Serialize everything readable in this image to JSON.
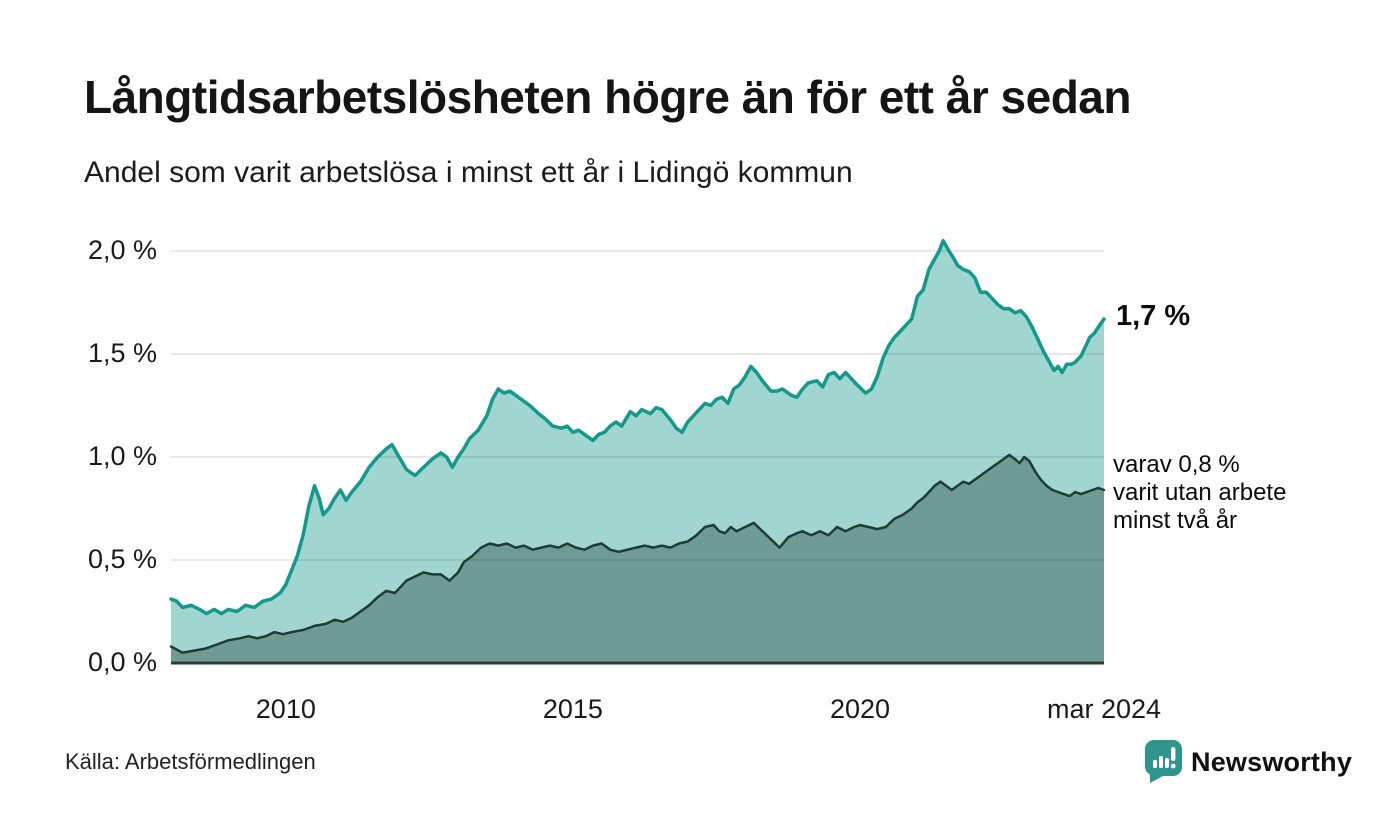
{
  "header": {
    "title": "Långtidsarbetslösheten högre än för ett år sedan",
    "subtitle": "Andel som varit arbetslösa i minst ett år i Lidingö kommun"
  },
  "annotations": {
    "latest_value": "1,7 %",
    "series2_lines": [
      "varav 0,8 %",
      "varit utan arbete",
      "minst två år"
    ]
  },
  "footer": {
    "source": "Källa: Arbetsförmedlingen",
    "brand": "Newsworthy"
  },
  "colors": {
    "teal_line": "#12998c",
    "light_fill": "#a0d6cf",
    "dark_line": "#1f3b38",
    "dark_fill": "#6f9b96",
    "grid": "rgba(0,0,0,0.12)",
    "axis": "#2b3b3c",
    "brand_teal": "#2f948c"
  },
  "chart_data": {
    "type": "area",
    "title": "Långtidsarbetslösheten högre än för ett år sedan",
    "subtitle": "Andel som varit arbetslösa i minst ett år i Lidingö kommun",
    "unit": "%",
    "grid": true,
    "x_domain": [
      2008.0,
      2024.25
    ],
    "ylim": [
      0,
      2.05
    ],
    "y_ticks": [
      {
        "value": 2.0,
        "label": "2,0 %"
      },
      {
        "value": 1.5,
        "label": "1,5 %"
      },
      {
        "value": 1.0,
        "label": "1,0 %"
      },
      {
        "value": 0.5,
        "label": "0,5 %"
      },
      {
        "value": 0.0,
        "label": "0,0 %"
      }
    ],
    "x_ticks": [
      {
        "value": 2010,
        "label": "2010"
      },
      {
        "value": 2015,
        "label": "2015"
      },
      {
        "value": 2020,
        "label": "2020"
      },
      {
        "value": 2024.25,
        "label": "mar 2024"
      }
    ],
    "series": [
      {
        "name": "Andel arbetslösa minst ett år",
        "end_value_label": "1,7 %",
        "line_color": "#12998c",
        "fill_color": "#a0d6cf",
        "line_width": 3.5,
        "points": [
          [
            2008.0,
            0.31
          ],
          [
            2008.1,
            0.3
          ],
          [
            2008.2,
            0.27
          ],
          [
            2008.35,
            0.28
          ],
          [
            2008.5,
            0.26
          ],
          [
            2008.62,
            0.24
          ],
          [
            2008.75,
            0.26
          ],
          [
            2008.88,
            0.24
          ],
          [
            2009.0,
            0.26
          ],
          [
            2009.15,
            0.25
          ],
          [
            2009.3,
            0.28
          ],
          [
            2009.45,
            0.27
          ],
          [
            2009.6,
            0.3
          ],
          [
            2009.75,
            0.31
          ],
          [
            2009.9,
            0.34
          ],
          [
            2010.0,
            0.38
          ],
          [
            2010.1,
            0.45
          ],
          [
            2010.2,
            0.52
          ],
          [
            2010.3,
            0.62
          ],
          [
            2010.4,
            0.76
          ],
          [
            2010.5,
            0.86
          ],
          [
            2010.58,
            0.8
          ],
          [
            2010.65,
            0.72
          ],
          [
            2010.75,
            0.75
          ],
          [
            2010.85,
            0.8
          ],
          [
            2010.95,
            0.84
          ],
          [
            2011.05,
            0.79
          ],
          [
            2011.15,
            0.83
          ],
          [
            2011.3,
            0.88
          ],
          [
            2011.45,
            0.95
          ],
          [
            2011.6,
            1.0
          ],
          [
            2011.75,
            1.04
          ],
          [
            2011.85,
            1.06
          ],
          [
            2011.95,
            1.01
          ],
          [
            2012.1,
            0.94
          ],
          [
            2012.25,
            0.91
          ],
          [
            2012.4,
            0.95
          ],
          [
            2012.55,
            0.99
          ],
          [
            2012.7,
            1.02
          ],
          [
            2012.8,
            1.0
          ],
          [
            2012.9,
            0.95
          ],
          [
            2013.0,
            1.0
          ],
          [
            2013.1,
            1.04
          ],
          [
            2013.2,
            1.09
          ],
          [
            2013.35,
            1.13
          ],
          [
            2013.5,
            1.2
          ],
          [
            2013.6,
            1.28
          ],
          [
            2013.7,
            1.33
          ],
          [
            2013.8,
            1.31
          ],
          [
            2013.9,
            1.32
          ],
          [
            2014.0,
            1.3
          ],
          [
            2014.1,
            1.28
          ],
          [
            2014.25,
            1.25
          ],
          [
            2014.4,
            1.21
          ],
          [
            2014.5,
            1.19
          ],
          [
            2014.65,
            1.15
          ],
          [
            2014.8,
            1.14
          ],
          [
            2014.9,
            1.15
          ],
          [
            2015.0,
            1.12
          ],
          [
            2015.1,
            1.13
          ],
          [
            2015.25,
            1.1
          ],
          [
            2015.35,
            1.08
          ],
          [
            2015.45,
            1.11
          ],
          [
            2015.55,
            1.12
          ],
          [
            2015.65,
            1.15
          ],
          [
            2015.75,
            1.17
          ],
          [
            2015.85,
            1.15
          ],
          [
            2016.0,
            1.22
          ],
          [
            2016.1,
            1.2
          ],
          [
            2016.2,
            1.23
          ],
          [
            2016.35,
            1.21
          ],
          [
            2016.45,
            1.24
          ],
          [
            2016.55,
            1.23
          ],
          [
            2016.7,
            1.18
          ],
          [
            2016.8,
            1.14
          ],
          [
            2016.9,
            1.12
          ],
          [
            2017.0,
            1.17
          ],
          [
            2017.1,
            1.2
          ],
          [
            2017.2,
            1.23
          ],
          [
            2017.3,
            1.26
          ],
          [
            2017.4,
            1.25
          ],
          [
            2017.5,
            1.28
          ],
          [
            2017.6,
            1.29
          ],
          [
            2017.7,
            1.26
          ],
          [
            2017.8,
            1.33
          ],
          [
            2017.9,
            1.35
          ],
          [
            2018.0,
            1.39
          ],
          [
            2018.1,
            1.44
          ],
          [
            2018.2,
            1.41
          ],
          [
            2018.3,
            1.37
          ],
          [
            2018.45,
            1.32
          ],
          [
            2018.55,
            1.32
          ],
          [
            2018.65,
            1.33
          ],
          [
            2018.8,
            1.3
          ],
          [
            2018.9,
            1.29
          ],
          [
            2019.0,
            1.33
          ],
          [
            2019.1,
            1.36
          ],
          [
            2019.25,
            1.37
          ],
          [
            2019.35,
            1.34
          ],
          [
            2019.45,
            1.4
          ],
          [
            2019.55,
            1.41
          ],
          [
            2019.65,
            1.38
          ],
          [
            2019.75,
            1.41
          ],
          [
            2019.85,
            1.38
          ],
          [
            2019.95,
            1.35
          ],
          [
            2020.1,
            1.31
          ],
          [
            2020.2,
            1.33
          ],
          [
            2020.3,
            1.39
          ],
          [
            2020.4,
            1.48
          ],
          [
            2020.5,
            1.54
          ],
          [
            2020.6,
            1.58
          ],
          [
            2020.7,
            1.61
          ],
          [
            2020.8,
            1.64
          ],
          [
            2020.9,
            1.67
          ],
          [
            2021.0,
            1.78
          ],
          [
            2021.1,
            1.81
          ],
          [
            2021.2,
            1.91
          ],
          [
            2021.3,
            1.96
          ],
          [
            2021.38,
            2.0
          ],
          [
            2021.45,
            2.05
          ],
          [
            2021.55,
            2.0
          ],
          [
            2021.62,
            1.97
          ],
          [
            2021.7,
            1.93
          ],
          [
            2021.8,
            1.91
          ],
          [
            2021.9,
            1.9
          ],
          [
            2022.0,
            1.87
          ],
          [
            2022.1,
            1.8
          ],
          [
            2022.2,
            1.8
          ],
          [
            2022.3,
            1.77
          ],
          [
            2022.4,
            1.74
          ],
          [
            2022.5,
            1.72
          ],
          [
            2022.6,
            1.72
          ],
          [
            2022.7,
            1.7
          ],
          [
            2022.8,
            1.71
          ],
          [
            2022.9,
            1.68
          ],
          [
            2023.0,
            1.63
          ],
          [
            2023.1,
            1.57
          ],
          [
            2023.2,
            1.51
          ],
          [
            2023.3,
            1.46
          ],
          [
            2023.38,
            1.42
          ],
          [
            2023.45,
            1.44
          ],
          [
            2023.52,
            1.41
          ],
          [
            2023.6,
            1.45
          ],
          [
            2023.68,
            1.45
          ],
          [
            2023.75,
            1.46
          ],
          [
            2023.85,
            1.49
          ],
          [
            2023.95,
            1.55
          ],
          [
            2024.0,
            1.58
          ],
          [
            2024.08,
            1.6
          ],
          [
            2024.15,
            1.63
          ],
          [
            2024.25,
            1.67
          ]
        ]
      },
      {
        "name": "Varav utan arbete minst två år",
        "end_value_label": "varav 0,8 % varit utan arbete minst två år",
        "line_color": "#1f3b38",
        "fill_color": "#6f9b96",
        "line_width": 2.5,
        "points": [
          [
            2008.0,
            0.08
          ],
          [
            2008.2,
            0.05
          ],
          [
            2008.4,
            0.06
          ],
          [
            2008.6,
            0.07
          ],
          [
            2008.8,
            0.09
          ],
          [
            2009.0,
            0.11
          ],
          [
            2009.2,
            0.12
          ],
          [
            2009.35,
            0.13
          ],
          [
            2009.5,
            0.12
          ],
          [
            2009.65,
            0.13
          ],
          [
            2009.8,
            0.15
          ],
          [
            2009.95,
            0.14
          ],
          [
            2010.1,
            0.15
          ],
          [
            2010.3,
            0.16
          ],
          [
            2010.5,
            0.18
          ],
          [
            2010.7,
            0.19
          ],
          [
            2010.85,
            0.21
          ],
          [
            2011.0,
            0.2
          ],
          [
            2011.15,
            0.22
          ],
          [
            2011.3,
            0.25
          ],
          [
            2011.45,
            0.28
          ],
          [
            2011.6,
            0.32
          ],
          [
            2011.75,
            0.35
          ],
          [
            2011.9,
            0.34
          ],
          [
            2012.0,
            0.37
          ],
          [
            2012.1,
            0.4
          ],
          [
            2012.25,
            0.42
          ],
          [
            2012.4,
            0.44
          ],
          [
            2012.55,
            0.43
          ],
          [
            2012.7,
            0.43
          ],
          [
            2012.85,
            0.4
          ],
          [
            2013.0,
            0.44
          ],
          [
            2013.1,
            0.49
          ],
          [
            2013.25,
            0.52
          ],
          [
            2013.4,
            0.56
          ],
          [
            2013.55,
            0.58
          ],
          [
            2013.7,
            0.57
          ],
          [
            2013.85,
            0.58
          ],
          [
            2014.0,
            0.56
          ],
          [
            2014.15,
            0.57
          ],
          [
            2014.3,
            0.55
          ],
          [
            2014.45,
            0.56
          ],
          [
            2014.6,
            0.57
          ],
          [
            2014.75,
            0.56
          ],
          [
            2014.9,
            0.58
          ],
          [
            2015.05,
            0.56
          ],
          [
            2015.2,
            0.55
          ],
          [
            2015.35,
            0.57
          ],
          [
            2015.5,
            0.58
          ],
          [
            2015.65,
            0.55
          ],
          [
            2015.8,
            0.54
          ],
          [
            2015.95,
            0.55
          ],
          [
            2016.1,
            0.56
          ],
          [
            2016.25,
            0.57
          ],
          [
            2016.4,
            0.56
          ],
          [
            2016.55,
            0.57
          ],
          [
            2016.7,
            0.56
          ],
          [
            2016.85,
            0.58
          ],
          [
            2017.0,
            0.59
          ],
          [
            2017.15,
            0.62
          ],
          [
            2017.3,
            0.66
          ],
          [
            2017.45,
            0.67
          ],
          [
            2017.55,
            0.64
          ],
          [
            2017.65,
            0.63
          ],
          [
            2017.75,
            0.66
          ],
          [
            2017.85,
            0.64
          ],
          [
            2018.0,
            0.66
          ],
          [
            2018.15,
            0.68
          ],
          [
            2018.3,
            0.64
          ],
          [
            2018.45,
            0.6
          ],
          [
            2018.6,
            0.56
          ],
          [
            2018.75,
            0.61
          ],
          [
            2018.9,
            0.63
          ],
          [
            2019.0,
            0.64
          ],
          [
            2019.15,
            0.62
          ],
          [
            2019.3,
            0.64
          ],
          [
            2019.45,
            0.62
          ],
          [
            2019.6,
            0.66
          ],
          [
            2019.75,
            0.64
          ],
          [
            2019.9,
            0.66
          ],
          [
            2020.0,
            0.67
          ],
          [
            2020.15,
            0.66
          ],
          [
            2020.3,
            0.65
          ],
          [
            2020.45,
            0.66
          ],
          [
            2020.6,
            0.7
          ],
          [
            2020.75,
            0.72
          ],
          [
            2020.9,
            0.75
          ],
          [
            2021.0,
            0.78
          ],
          [
            2021.1,
            0.8
          ],
          [
            2021.2,
            0.83
          ],
          [
            2021.3,
            0.86
          ],
          [
            2021.4,
            0.88
          ],
          [
            2021.5,
            0.86
          ],
          [
            2021.6,
            0.84
          ],
          [
            2021.7,
            0.86
          ],
          [
            2021.8,
            0.88
          ],
          [
            2021.9,
            0.87
          ],
          [
            2022.0,
            0.89
          ],
          [
            2022.1,
            0.91
          ],
          [
            2022.2,
            0.93
          ],
          [
            2022.3,
            0.95
          ],
          [
            2022.4,
            0.97
          ],
          [
            2022.5,
            0.99
          ],
          [
            2022.6,
            1.01
          ],
          [
            2022.7,
            0.99
          ],
          [
            2022.78,
            0.97
          ],
          [
            2022.86,
            1.0
          ],
          [
            2022.95,
            0.98
          ],
          [
            2023.05,
            0.93
          ],
          [
            2023.15,
            0.89
          ],
          [
            2023.25,
            0.86
          ],
          [
            2023.35,
            0.84
          ],
          [
            2023.45,
            0.83
          ],
          [
            2023.55,
            0.82
          ],
          [
            2023.65,
            0.81
          ],
          [
            2023.75,
            0.83
          ],
          [
            2023.85,
            0.82
          ],
          [
            2023.95,
            0.83
          ],
          [
            2024.05,
            0.84
          ],
          [
            2024.15,
            0.85
          ],
          [
            2024.25,
            0.84
          ]
        ]
      }
    ]
  }
}
